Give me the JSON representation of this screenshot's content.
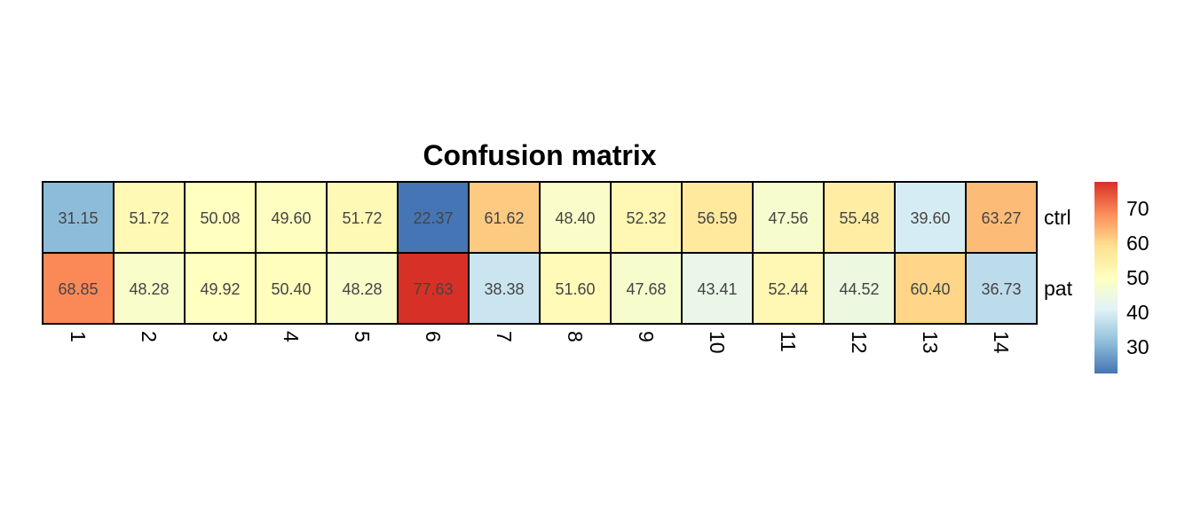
{
  "chart_data": {
    "type": "heatmap",
    "title": "Confusion matrix",
    "rows": [
      "ctrl",
      "pat"
    ],
    "columns": [
      "1",
      "2",
      "3",
      "4",
      "5",
      "6",
      "7",
      "8",
      "9",
      "10",
      "11",
      "12",
      "13",
      "14"
    ],
    "values": [
      [
        31.15,
        51.72,
        50.08,
        49.6,
        51.72,
        22.37,
        61.62,
        48.4,
        52.32,
        56.59,
        47.56,
        55.48,
        39.6,
        63.27
      ],
      [
        68.85,
        48.28,
        49.92,
        50.4,
        48.28,
        77.63,
        38.38,
        51.6,
        47.68,
        43.41,
        52.44,
        44.52,
        60.4,
        36.73
      ]
    ],
    "value_labels": [
      [
        "31.15",
        "51.72",
        "50.08",
        "49.60",
        "51.72",
        "22.37",
        "61.62",
        "48.40",
        "52.32",
        "56.59",
        "47.56",
        "55.48",
        "39.60",
        "63.27"
      ],
      [
        "68.85",
        "48.28",
        "49.92",
        "50.40",
        "48.28",
        "77.63",
        "38.38",
        "51.60",
        "47.68",
        "43.41",
        "52.44",
        "44.52",
        "60.40",
        "36.73"
      ]
    ],
    "color_scale": {
      "min": 22.37,
      "max": 77.63,
      "palette": [
        "#4575b4",
        "#91bfdb",
        "#e0f3f8",
        "#ffffbf",
        "#fee090",
        "#fc8d59",
        "#d73027"
      ]
    },
    "legend": {
      "position": "right",
      "ticks": [
        30,
        40,
        50,
        60,
        70
      ],
      "tick_labels": [
        "30",
        "40",
        "50",
        "60",
        "70"
      ]
    },
    "grid": true
  }
}
